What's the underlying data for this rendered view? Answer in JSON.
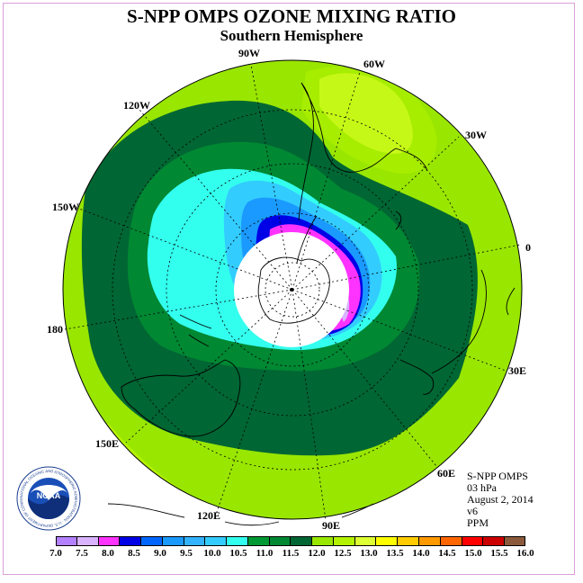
{
  "header": {
    "title": "S-NPP OMPS OZONE MIXING RATIO",
    "subtitle": "Southern Hemisphere"
  },
  "longitude_labels": [
    {
      "id": "lon-90w",
      "text": "90W"
    },
    {
      "id": "lon-60w",
      "text": "60W"
    },
    {
      "id": "lon-120w",
      "text": "120W"
    },
    {
      "id": "lon-30w",
      "text": "30W"
    },
    {
      "id": "lon-150w",
      "text": "150W"
    },
    {
      "id": "lon-0",
      "text": "0"
    },
    {
      "id": "lon-180",
      "text": "180"
    },
    {
      "id": "lon-30e",
      "text": "30E"
    },
    {
      "id": "lon-150e",
      "text": "150E"
    },
    {
      "id": "lon-60e",
      "text": "60E"
    },
    {
      "id": "lon-120e",
      "text": "120E"
    },
    {
      "id": "lon-90e",
      "text": "90E"
    }
  ],
  "info": {
    "instrument": "S-NPP OMPS",
    "level": "03 hPa",
    "date": "August 2, 2014",
    "version": "v6",
    "units": "PPM"
  },
  "colorbar": {
    "colors": [
      "#b380ff",
      "#d9b3ff",
      "#ff33ff",
      "#0000e6",
      "#0066ff",
      "#1a99ff",
      "#33b3ff",
      "#33ccff",
      "#33ffee",
      "#009933",
      "#008833",
      "#006633",
      "#99e600",
      "#b3f200",
      "#ddff33",
      "#ffff00",
      "#ffcc00",
      "#ff9900",
      "#ff6600",
      "#ff0000",
      "#cc0000",
      "#8b5a3c"
    ],
    "ticks": [
      "7.0",
      "7.5",
      "8.0",
      "8.5",
      "9.0",
      "9.5",
      "10.0",
      "10.5",
      "11.0",
      "11.5",
      "12.0",
      "12.5",
      "13.0",
      "13.5",
      "14.0",
      "14.5",
      "15.0",
      "15.5",
      "16.0"
    ]
  },
  "logo": {
    "text": "NOAA",
    "ring_text": "NATIONAL OCEANIC AND ATMOSPHERIC ADMINISTRATION · U.S. DEPARTMENT OF COMMERCE"
  }
}
